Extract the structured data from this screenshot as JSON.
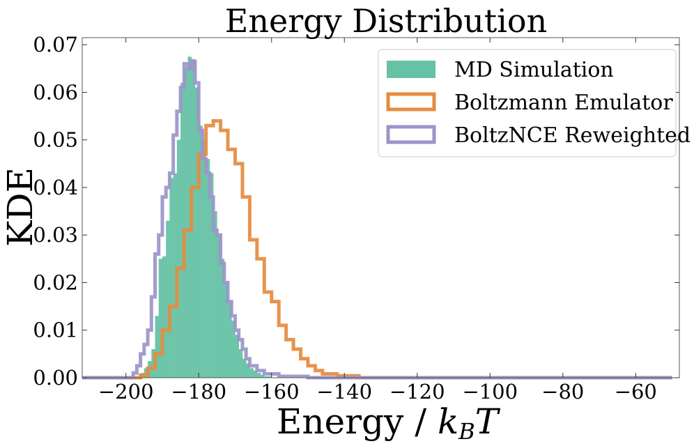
{
  "chart_data": {
    "type": "histogram",
    "title": "Energy Distribution",
    "xlabel": "Energy / ",
    "xlabel_math": "k_B T",
    "ylabel": "KDE",
    "xlim": [
      -212,
      -48
    ],
    "ylim": [
      0,
      0.0715
    ],
    "xticks": [
      -200,
      -180,
      -160,
      -140,
      -120,
      -100,
      -80,
      -60
    ],
    "xtick_labels": [
      "−200",
      "−180",
      "−160",
      "−140",
      "−120",
      "−100",
      "−80",
      "−60"
    ],
    "yticks": [
      0,
      0.01,
      0.02,
      0.03,
      0.04,
      0.05,
      0.06,
      0.07
    ],
    "ytick_labels": [
      "0.00",
      "0.01",
      "0.02",
      "0.03",
      "0.04",
      "0.05",
      "0.06",
      "0.07"
    ],
    "grid": false,
    "legend_position": "top-right",
    "series": [
      {
        "name": "MD Simulation",
        "style": "filled",
        "color": "#66c2a5",
        "bins": [
          [
            -196,
            -195,
            0.001
          ],
          [
            -195,
            -194,
            0.002
          ],
          [
            -194,
            -193,
            0.0035
          ],
          [
            -193,
            -192,
            0.006
          ],
          [
            -192,
            -191,
            0.013
          ],
          [
            -191,
            -190,
            0.025
          ],
          [
            -190,
            -189,
            0.0255
          ],
          [
            -189,
            -188,
            0.033
          ],
          [
            -188,
            -187,
            0.042
          ],
          [
            -187,
            -186,
            0.043
          ],
          [
            -186,
            -185,
            0.05
          ],
          [
            -185,
            -184,
            0.062
          ],
          [
            -184,
            -183,
            0.065
          ],
          [
            -183,
            -182,
            0.0675
          ],
          [
            -182,
            -181,
            0.067
          ],
          [
            -181,
            -180,
            0.061
          ],
          [
            -180,
            -179,
            0.053
          ],
          [
            -179,
            -178,
            0.05
          ],
          [
            -178,
            -177,
            0.046
          ],
          [
            -177,
            -176,
            0.043
          ],
          [
            -176,
            -175,
            0.035
          ],
          [
            -175,
            -174,
            0.03
          ],
          [
            -174,
            -173,
            0.025
          ],
          [
            -173,
            -172,
            0.02
          ],
          [
            -172,
            -171,
            0.016
          ],
          [
            -171,
            -170,
            0.012
          ],
          [
            -170,
            -169,
            0.009
          ],
          [
            -169,
            -168,
            0.006
          ],
          [
            -168,
            -167,
            0.004
          ],
          [
            -167,
            -166,
            0.003
          ],
          [
            -166,
            -165,
            0.002
          ],
          [
            -165,
            -164,
            0.0015
          ],
          [
            -164,
            -163,
            0.001
          ],
          [
            -163,
            -162,
            0.0006
          ],
          [
            -162,
            -160,
            0.0003
          ]
        ]
      },
      {
        "name": "Boltzmann Emulator",
        "style": "step",
        "color": "#e58b3f",
        "bins": [
          [
            -212,
            -196,
            0.0
          ],
          [
            -196,
            -194,
            0.0005
          ],
          [
            -194,
            -192,
            0.002
          ],
          [
            -192,
            -190,
            0.005
          ],
          [
            -190,
            -188,
            0.01
          ],
          [
            -188,
            -186,
            0.015
          ],
          [
            -186,
            -184,
            0.023
          ],
          [
            -184,
            -182,
            0.031
          ],
          [
            -182,
            -180,
            0.04
          ],
          [
            -180,
            -178,
            0.047
          ],
          [
            -178,
            -176,
            0.053
          ],
          [
            -176,
            -174,
            0.054
          ],
          [
            -174,
            -172,
            0.052
          ],
          [
            -172,
            -170,
            0.048
          ],
          [
            -170,
            -168,
            0.045
          ],
          [
            -168,
            -166,
            0.038
          ],
          [
            -166,
            -164,
            0.029
          ],
          [
            -164,
            -162,
            0.025
          ],
          [
            -162,
            -160,
            0.018
          ],
          [
            -160,
            -158,
            0.016
          ],
          [
            -158,
            -156,
            0.011
          ],
          [
            -156,
            -154,
            0.008
          ],
          [
            -154,
            -152,
            0.006
          ],
          [
            -152,
            -150,
            0.004
          ],
          [
            -150,
            -148,
            0.0025
          ],
          [
            -148,
            -146,
            0.0015
          ],
          [
            -146,
            -142,
            0.0008
          ],
          [
            -142,
            -136,
            0.0004
          ],
          [
            -136,
            -50,
            0.0
          ]
        ]
      },
      {
        "name": "BoltzNCE Reweighted",
        "style": "step",
        "color": "#9b95c9",
        "bins": [
          [
            -212,
            -198,
            0.0
          ],
          [
            -198,
            -197,
            0.001
          ],
          [
            -197,
            -196,
            0.0025
          ],
          [
            -196,
            -195,
            0.005
          ],
          [
            -195,
            -194,
            0.007
          ],
          [
            -194,
            -193,
            0.01
          ],
          [
            -193,
            -192,
            0.017
          ],
          [
            -192,
            -191,
            0.026
          ],
          [
            -191,
            -190,
            0.03
          ],
          [
            -190,
            -189,
            0.038
          ],
          [
            -189,
            -188,
            0.04
          ],
          [
            -188,
            -187,
            0.043
          ],
          [
            -187,
            -186,
            0.051
          ],
          [
            -186,
            -185,
            0.056
          ],
          [
            -185,
            -184,
            0.061
          ],
          [
            -184,
            -183,
            0.066
          ],
          [
            -183,
            -182,
            0.065
          ],
          [
            -182,
            -181,
            0.0665
          ],
          [
            -181,
            -180,
            0.062
          ],
          [
            -180,
            -179,
            0.052
          ],
          [
            -179,
            -178,
            0.046
          ],
          [
            -178,
            -177,
            0.043
          ],
          [
            -177,
            -176,
            0.038
          ],
          [
            -176,
            -175,
            0.031
          ],
          [
            -175,
            -174,
            0.03
          ],
          [
            -174,
            -173,
            0.024
          ],
          [
            -173,
            -172,
            0.02
          ],
          [
            -172,
            -171,
            0.016
          ],
          [
            -171,
            -170,
            0.013
          ],
          [
            -170,
            -169,
            0.01
          ],
          [
            -169,
            -168,
            0.008
          ],
          [
            -168,
            -167,
            0.006
          ],
          [
            -167,
            -166,
            0.004
          ],
          [
            -166,
            -164,
            0.0025
          ],
          [
            -164,
            -162,
            0.0015
          ],
          [
            -162,
            -158,
            0.0008
          ],
          [
            -158,
            -150,
            0.0003
          ],
          [
            -150,
            -50,
            0.0
          ]
        ]
      }
    ]
  }
}
